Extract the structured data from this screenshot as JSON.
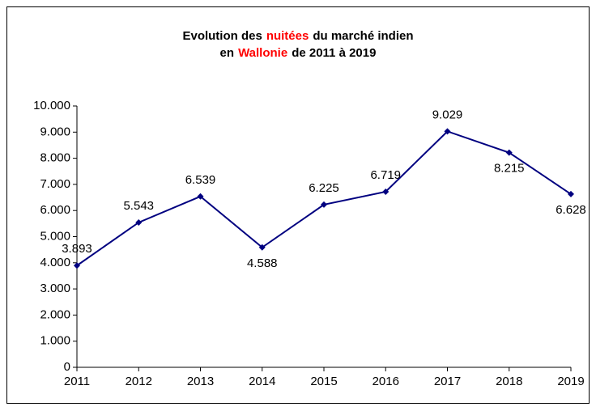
{
  "chart_data": {
    "type": "line",
    "title": [
      [
        {
          "text": "Evolution des"
        },
        {
          "text": "nuitées",
          "color": "#ff0000"
        },
        {
          "text": "du marché indien"
        }
      ],
      [
        {
          "text": "en"
        },
        {
          "text": "Wallonie",
          "color": "#ff0000"
        },
        {
          "text": "de 2011 à 2019"
        }
      ]
    ],
    "categories": [
      "2011",
      "2012",
      "2013",
      "2014",
      "2015",
      "2016",
      "2017",
      "2018",
      "2019"
    ],
    "values": [
      3893,
      5543,
      6539,
      4588,
      6225,
      6719,
      9029,
      8215,
      6628
    ],
    "value_labels": [
      "3.893",
      "5.543",
      "6.539",
      "4.588",
      "6.225",
      "6.719",
      "9.029",
      "8.215",
      "6.628"
    ],
    "color": "#000080",
    "ylim": [
      0,
      10000
    ],
    "yticks": [
      0,
      {
        "value": 1000,
        "label": "1.000"
      },
      {
        "value": 2000,
        "label": "2.000"
      },
      {
        "value": 3000,
        "label": "3.000"
      },
      {
        "value": 4000,
        "label": "4.000"
      },
      {
        "value": 5000,
        "label": "5.000"
      },
      {
        "value": 6000,
        "label": "6.000"
      },
      {
        "value": 7000,
        "label": "7.000"
      },
      {
        "value": 8000,
        "label": "8.000"
      },
      {
        "value": 9000,
        "label": "9.000"
      },
      {
        "value": 10000,
        "label": "10.000"
      }
    ],
    "grid": false
  }
}
